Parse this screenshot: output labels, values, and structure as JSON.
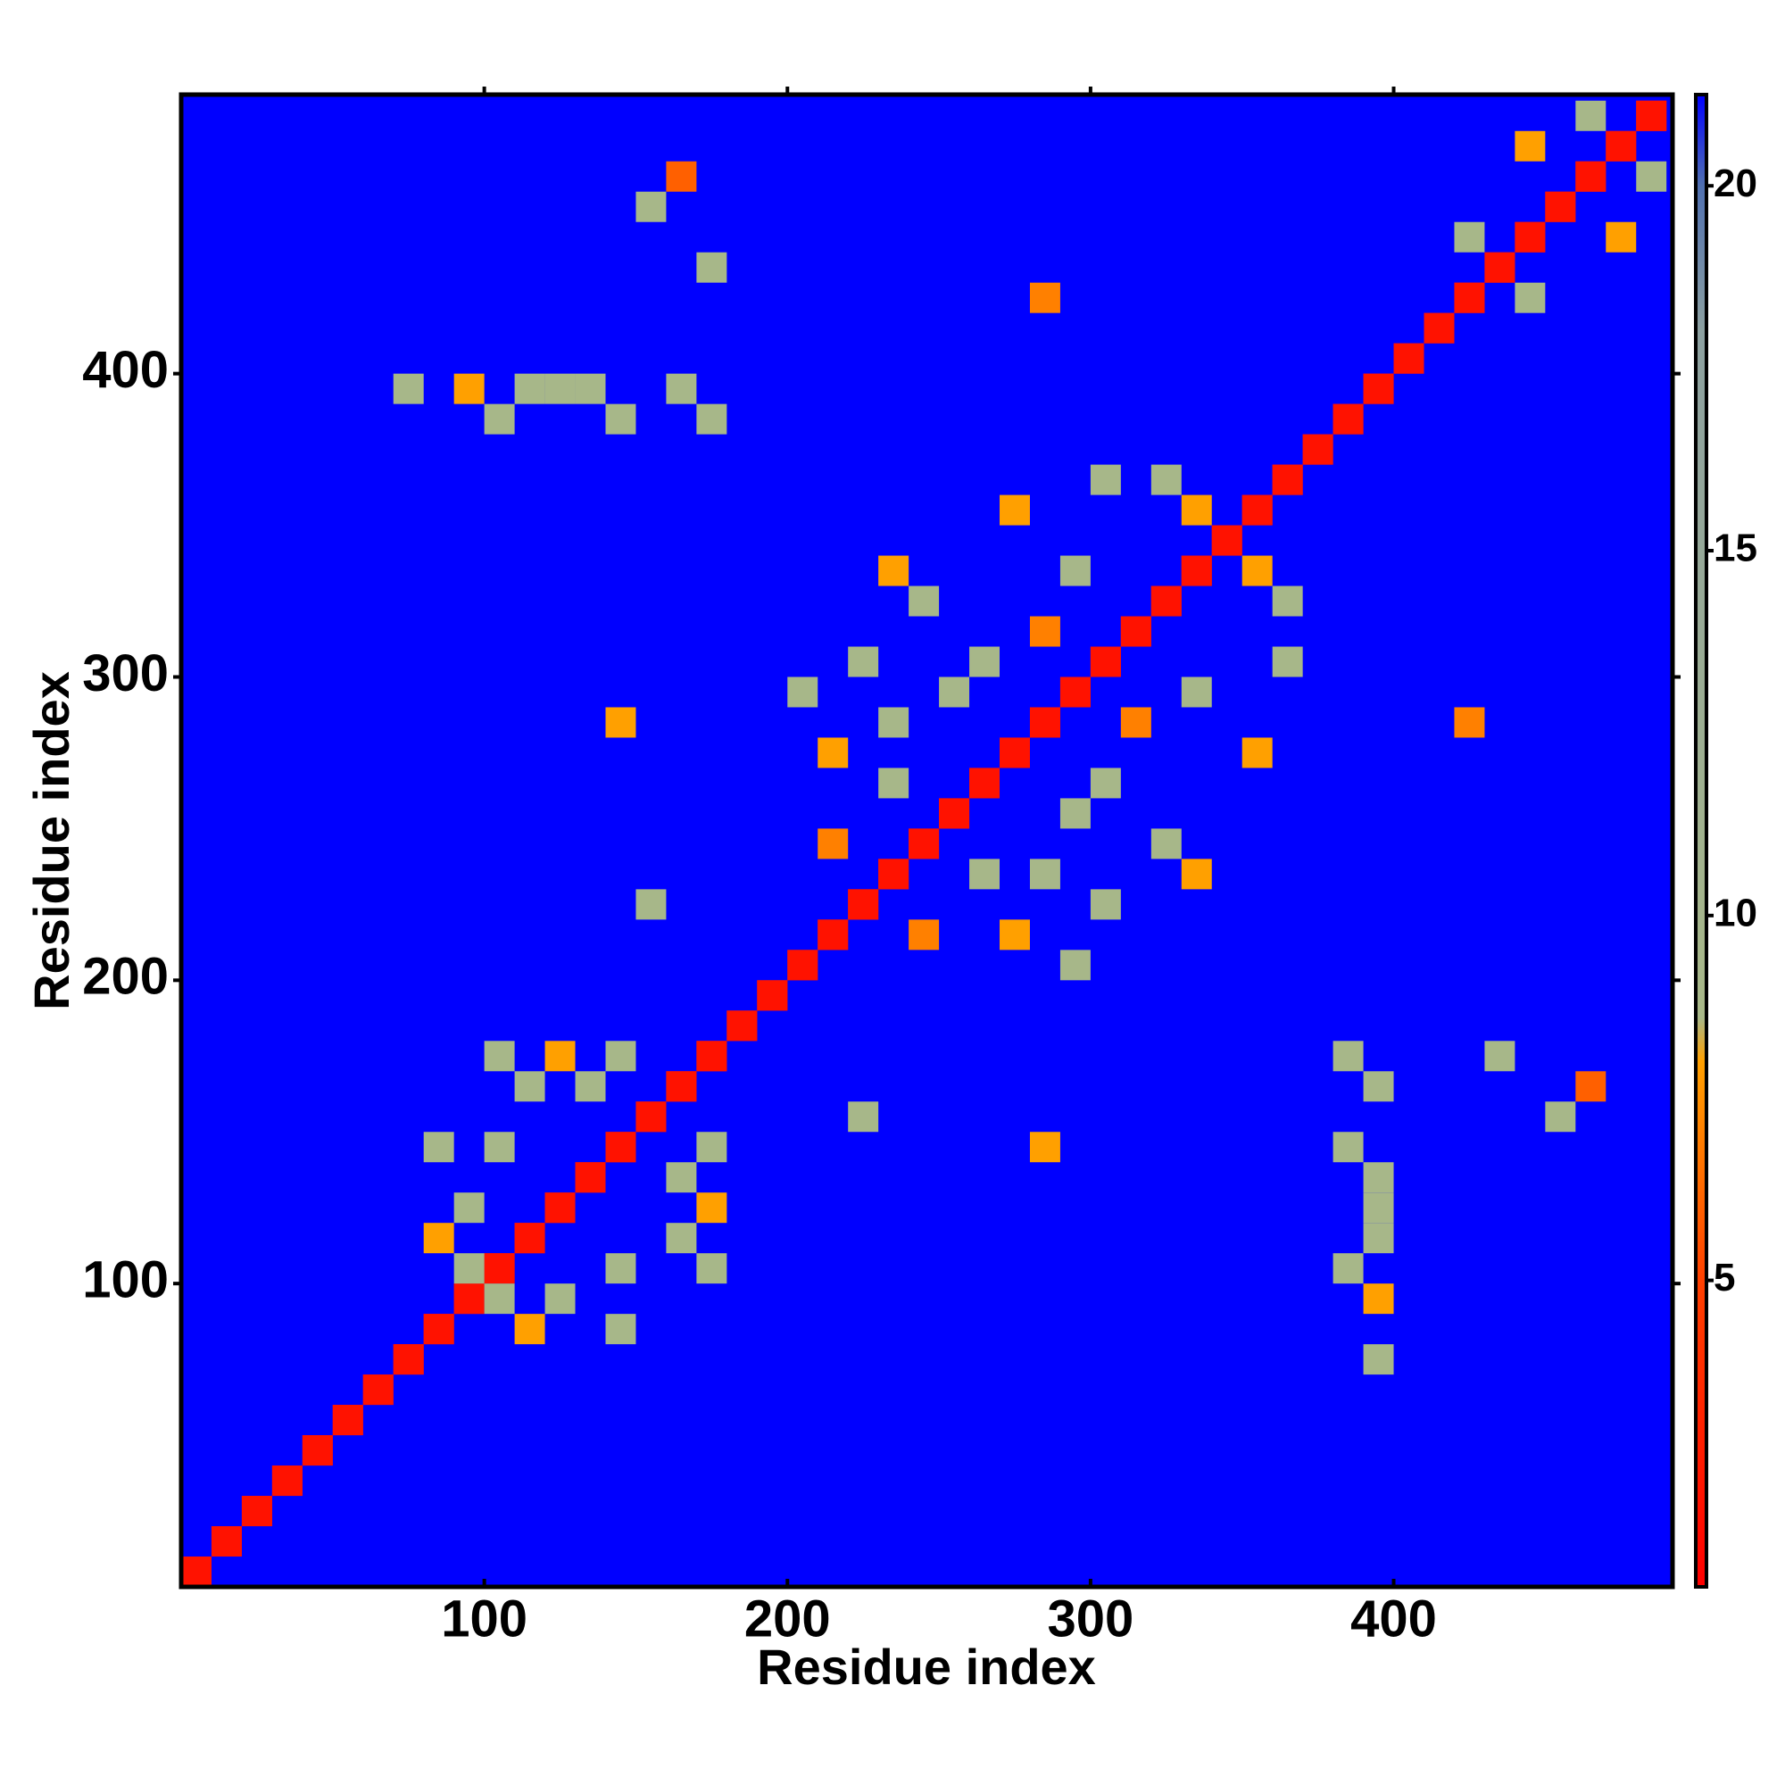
{
  "chart_data": {
    "type": "heatmap",
    "x_label": "Residue index",
    "y_label": "Residue index",
    "xlim": [
      0,
      492
    ],
    "ylim": [
      0,
      492
    ],
    "xticks": [
      100,
      200,
      300,
      400
    ],
    "yticks": [
      100,
      200,
      300,
      400
    ],
    "cell_size": 10,
    "symmetric": true,
    "clim": [
      0.8,
      21.25
    ],
    "cticks": [
      5,
      10,
      15,
      20
    ],
    "colormap": [
      {
        "value": 0.8,
        "color": "#ff0000"
      },
      {
        "value": 5,
        "color": "#ff4000"
      },
      {
        "value": 8,
        "color": "#ffa000"
      },
      {
        "value": 8.6,
        "color": "#a8b888"
      },
      {
        "value": 18,
        "color": "#8ca0a0"
      },
      {
        "value": 20,
        "color": "#5070b0"
      },
      {
        "value": 21.25,
        "color": "#0000ff"
      }
    ],
    "cells": [
      [
        0,
        0,
        2
      ],
      [
        10,
        10,
        2
      ],
      [
        20,
        20,
        2
      ],
      [
        30,
        30,
        2
      ],
      [
        40,
        40,
        2
      ],
      [
        50,
        50,
        2
      ],
      [
        60,
        60,
        2
      ],
      [
        70,
        70,
        2
      ],
      [
        80,
        80,
        2
      ],
      [
        90,
        90,
        2
      ],
      [
        100,
        100,
        2
      ],
      [
        110,
        110,
        2
      ],
      [
        120,
        120,
        2
      ],
      [
        130,
        130,
        2
      ],
      [
        140,
        140,
        2
      ],
      [
        150,
        150,
        2
      ],
      [
        160,
        160,
        2
      ],
      [
        170,
        170,
        2
      ],
      [
        180,
        180,
        2
      ],
      [
        190,
        190,
        2
      ],
      [
        200,
        200,
        2
      ],
      [
        210,
        210,
        2
      ],
      [
        220,
        220,
        2
      ],
      [
        230,
        230,
        2
      ],
      [
        240,
        240,
        2
      ],
      [
        250,
        250,
        2
      ],
      [
        260,
        260,
        2
      ],
      [
        270,
        270,
        2
      ],
      [
        280,
        280,
        2
      ],
      [
        290,
        290,
        2
      ],
      [
        300,
        300,
        2
      ],
      [
        310,
        310,
        2
      ],
      [
        320,
        320,
        2
      ],
      [
        330,
        330,
        2
      ],
      [
        340,
        340,
        2
      ],
      [
        350,
        350,
        2
      ],
      [
        360,
        360,
        2
      ],
      [
        370,
        370,
        2
      ],
      [
        380,
        380,
        2
      ],
      [
        390,
        390,
        2
      ],
      [
        400,
        400,
        2
      ],
      [
        410,
        410,
        2
      ],
      [
        420,
        420,
        2
      ],
      [
        430,
        430,
        2
      ],
      [
        440,
        440,
        2
      ],
      [
        450,
        450,
        2
      ],
      [
        460,
        460,
        2
      ],
      [
        470,
        470,
        2
      ],
      [
        480,
        480,
        2
      ],
      [
        150,
        450,
        9
      ],
      [
        160,
        460,
        6
      ],
      [
        70,
        390,
        9
      ],
      [
        90,
        390,
        8
      ],
      [
        110,
        390,
        9
      ],
      [
        130,
        390,
        9
      ],
      [
        160,
        390,
        9
      ],
      [
        170,
        380,
        9
      ],
      [
        100,
        380,
        9
      ],
      [
        230,
        330,
        8
      ],
      [
        140,
        280,
        8
      ],
      [
        150,
        220,
        9
      ],
      [
        280,
        420,
        7
      ],
      [
        120,
        390,
        9
      ],
      [
        140,
        380,
        9
      ],
      [
        170,
        430,
        9
      ],
      [
        80,
        110,
        8
      ],
      [
        90,
        120,
        9
      ],
      [
        100,
        140,
        9
      ],
      [
        110,
        160,
        9
      ],
      [
        120,
        170,
        8
      ],
      [
        80,
        140,
        9
      ],
      [
        100,
        170,
        9
      ],
      [
        130,
        160,
        9
      ],
      [
        90,
        100,
        9
      ],
      [
        140,
        170,
        9
      ],
      [
        210,
        270,
        8
      ],
      [
        220,
        300,
        9
      ],
      [
        230,
        280,
        9
      ],
      [
        240,
        320,
        9
      ],
      [
        260,
        300,
        9
      ],
      [
        270,
        350,
        8
      ],
      [
        290,
        330,
        9
      ],
      [
        300,
        360,
        9
      ],
      [
        280,
        310,
        7
      ],
      [
        210,
        240,
        7
      ],
      [
        250,
        290,
        9
      ],
      [
        320,
        360,
        9
      ],
      [
        330,
        350,
        8
      ],
      [
        230,
        260,
        9
      ],
      [
        200,
        290,
        9
      ],
      [
        440,
        470,
        8
      ],
      [
        460,
        480,
        9
      ],
      [
        420,
        440,
        9
      ]
    ]
  }
}
